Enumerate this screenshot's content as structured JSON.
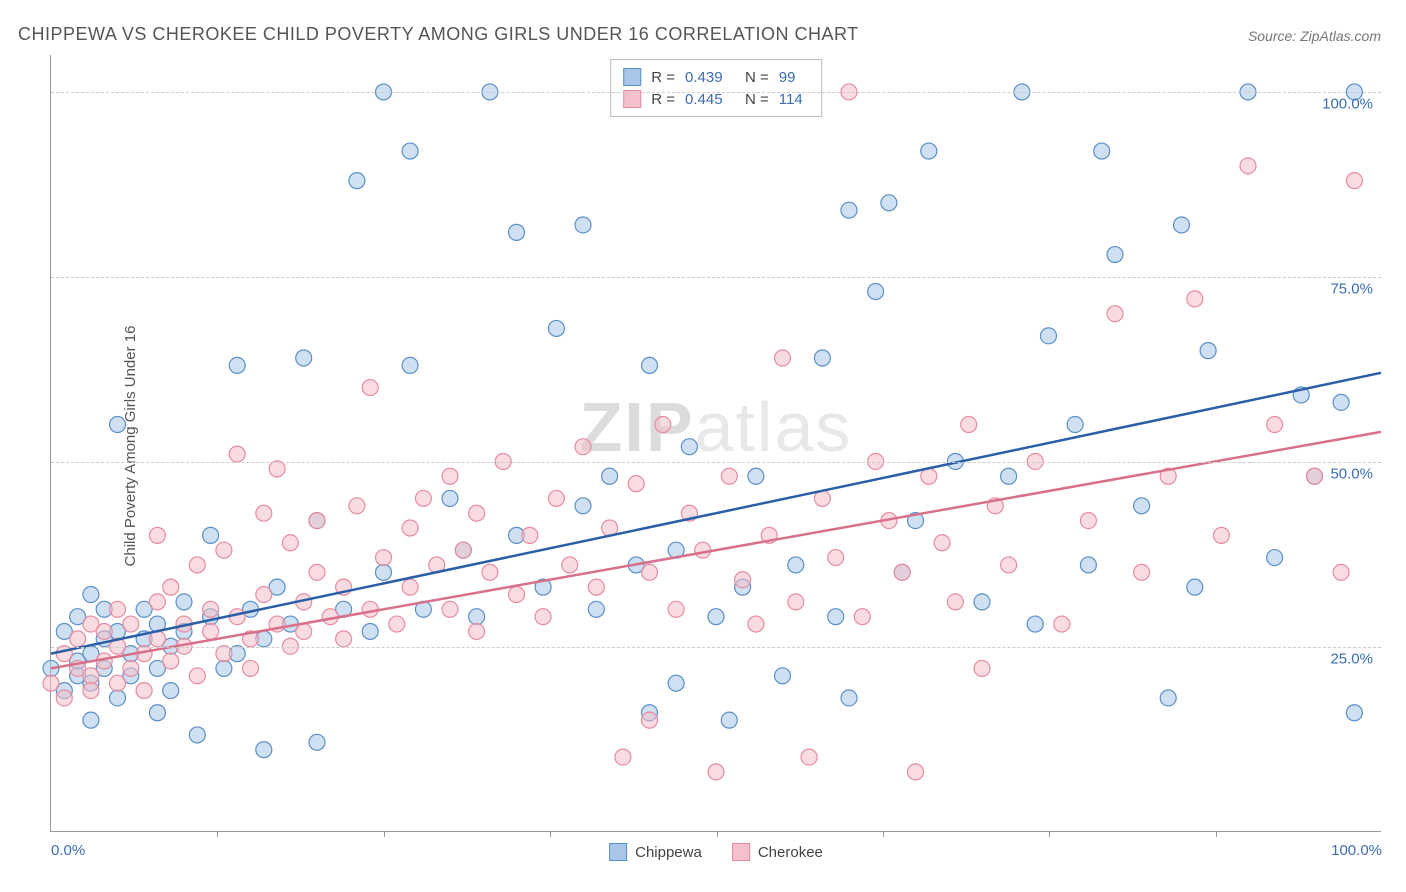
{
  "title": "CHIPPEWA VS CHEROKEE CHILD POVERTY AMONG GIRLS UNDER 16 CORRELATION CHART",
  "source_label": "Source:",
  "source_value": "ZipAtlas.com",
  "ylabel": "Child Poverty Among Girls Under 16",
  "watermark_a": "ZIP",
  "watermark_b": "atlas",
  "chart": {
    "type": "scatter",
    "xlim": [
      0,
      100
    ],
    "ylim": [
      0,
      105
    ],
    "xtick_labels": [
      "0.0%",
      "100.0%"
    ],
    "xtick_positions": [
      0,
      100
    ],
    "xtick_marks": [
      12.5,
      25,
      37.5,
      50,
      62.5,
      75,
      87.5
    ],
    "ytick_labels": [
      "25.0%",
      "50.0%",
      "75.0%",
      "100.0%"
    ],
    "ytick_positions": [
      25,
      50,
      75,
      100
    ],
    "grid_color": "#cccccc",
    "background_color": "#ffffff",
    "marker_radius": 8,
    "marker_opacity": 0.55,
    "series": [
      {
        "name": "Chippewa",
        "fill_color": "#a8c6e8",
        "stroke_color": "#5a8fc8",
        "line_color": "#2a5fa8",
        "R": "0.439",
        "N": "99",
        "trend": {
          "x1": 0,
          "y1": 24,
          "x2": 100,
          "y2": 62
        },
        "points": [
          [
            0,
            22
          ],
          [
            1,
            19
          ],
          [
            1,
            27
          ],
          [
            2,
            23
          ],
          [
            2,
            29
          ],
          [
            2,
            21
          ],
          [
            3,
            20
          ],
          [
            3,
            24
          ],
          [
            3,
            32
          ],
          [
            3,
            15
          ],
          [
            4,
            26
          ],
          [
            4,
            22
          ],
          [
            4,
            30
          ],
          [
            5,
            18
          ],
          [
            5,
            27
          ],
          [
            5,
            55
          ],
          [
            6,
            21
          ],
          [
            6,
            24
          ],
          [
            7,
            26
          ],
          [
            7,
            30
          ],
          [
            8,
            22
          ],
          [
            8,
            28
          ],
          [
            8,
            16
          ],
          [
            9,
            25
          ],
          [
            9,
            19
          ],
          [
            10,
            27
          ],
          [
            10,
            31
          ],
          [
            11,
            13
          ],
          [
            12,
            29
          ],
          [
            12,
            40
          ],
          [
            13,
            22
          ],
          [
            14,
            24
          ],
          [
            14,
            63
          ],
          [
            15,
            30
          ],
          [
            16,
            26
          ],
          [
            16,
            11
          ],
          [
            17,
            33
          ],
          [
            18,
            28
          ],
          [
            19,
            64
          ],
          [
            20,
            42
          ],
          [
            20,
            12
          ],
          [
            22,
            30
          ],
          [
            23,
            88
          ],
          [
            24,
            27
          ],
          [
            25,
            100
          ],
          [
            25,
            35
          ],
          [
            27,
            92
          ],
          [
            27,
            63
          ],
          [
            28,
            30
          ],
          [
            30,
            45
          ],
          [
            31,
            38
          ],
          [
            32,
            29
          ],
          [
            33,
            100
          ],
          [
            35,
            40
          ],
          [
            35,
            81
          ],
          [
            37,
            33
          ],
          [
            38,
            68
          ],
          [
            40,
            44
          ],
          [
            40,
            82
          ],
          [
            41,
            30
          ],
          [
            42,
            48
          ],
          [
            44,
            36
          ],
          [
            45,
            16
          ],
          [
            45,
            63
          ],
          [
            47,
            38
          ],
          [
            47,
            20
          ],
          [
            48,
            52
          ],
          [
            50,
            29
          ],
          [
            51,
            15
          ],
          [
            52,
            33
          ],
          [
            53,
            48
          ],
          [
            55,
            21
          ],
          [
            56,
            36
          ],
          [
            58,
            64
          ],
          [
            59,
            29
          ],
          [
            60,
            18
          ],
          [
            60,
            84
          ],
          [
            62,
            73
          ],
          [
            63,
            85
          ],
          [
            64,
            35
          ],
          [
            65,
            42
          ],
          [
            66,
            92
          ],
          [
            68,
            50
          ],
          [
            70,
            31
          ],
          [
            72,
            48
          ],
          [
            73,
            100
          ],
          [
            74,
            28
          ],
          [
            75,
            67
          ],
          [
            77,
            55
          ],
          [
            78,
            36
          ],
          [
            79,
            92
          ],
          [
            80,
            78
          ],
          [
            82,
            44
          ],
          [
            84,
            18
          ],
          [
            85,
            82
          ],
          [
            86,
            33
          ],
          [
            87,
            65
          ],
          [
            90,
            100
          ],
          [
            92,
            37
          ],
          [
            94,
            59
          ],
          [
            95,
            48
          ],
          [
            97,
            58
          ],
          [
            98,
            100
          ],
          [
            98,
            16
          ]
        ]
      },
      {
        "name": "Cherokee",
        "fill_color": "#f4c0cb",
        "stroke_color": "#e88ba0",
        "line_color": "#d9708a",
        "R": "0.445",
        "N": "114",
        "trend": {
          "x1": 0,
          "y1": 22,
          "x2": 100,
          "y2": 54
        },
        "points": [
          [
            0,
            20
          ],
          [
            1,
            24
          ],
          [
            1,
            18
          ],
          [
            2,
            22
          ],
          [
            2,
            26
          ],
          [
            3,
            21
          ],
          [
            3,
            28
          ],
          [
            3,
            19
          ],
          [
            4,
            23
          ],
          [
            4,
            27
          ],
          [
            5,
            25
          ],
          [
            5,
            20
          ],
          [
            5,
            30
          ],
          [
            6,
            22
          ],
          [
            6,
            28
          ],
          [
            7,
            24
          ],
          [
            7,
            19
          ],
          [
            8,
            26
          ],
          [
            8,
            31
          ],
          [
            8,
            40
          ],
          [
            9,
            23
          ],
          [
            9,
            33
          ],
          [
            10,
            25
          ],
          [
            10,
            28
          ],
          [
            11,
            21
          ],
          [
            11,
            36
          ],
          [
            12,
            27
          ],
          [
            12,
            30
          ],
          [
            13,
            24
          ],
          [
            13,
            38
          ],
          [
            14,
            51
          ],
          [
            14,
            29
          ],
          [
            15,
            26
          ],
          [
            15,
            22
          ],
          [
            16,
            32
          ],
          [
            16,
            43
          ],
          [
            17,
            28
          ],
          [
            17,
            49
          ],
          [
            18,
            25
          ],
          [
            18,
            39
          ],
          [
            19,
            31
          ],
          [
            19,
            27
          ],
          [
            20,
            42
          ],
          [
            20,
            35
          ],
          [
            21,
            29
          ],
          [
            22,
            33
          ],
          [
            22,
            26
          ],
          [
            23,
            44
          ],
          [
            24,
            30
          ],
          [
            24,
            60
          ],
          [
            25,
            37
          ],
          [
            26,
            28
          ],
          [
            27,
            41
          ],
          [
            27,
            33
          ],
          [
            28,
            45
          ],
          [
            29,
            36
          ],
          [
            30,
            30
          ],
          [
            30,
            48
          ],
          [
            31,
            38
          ],
          [
            32,
            27
          ],
          [
            32,
            43
          ],
          [
            33,
            35
          ],
          [
            34,
            50
          ],
          [
            35,
            32
          ],
          [
            36,
            40
          ],
          [
            37,
            29
          ],
          [
            38,
            45
          ],
          [
            39,
            36
          ],
          [
            40,
            52
          ],
          [
            41,
            33
          ],
          [
            42,
            41
          ],
          [
            43,
            10
          ],
          [
            44,
            47
          ],
          [
            45,
            35
          ],
          [
            45,
            15
          ],
          [
            46,
            55
          ],
          [
            47,
            30
          ],
          [
            48,
            43
          ],
          [
            49,
            38
          ],
          [
            50,
            8
          ],
          [
            51,
            48
          ],
          [
            52,
            34
          ],
          [
            53,
            28
          ],
          [
            54,
            40
          ],
          [
            55,
            64
          ],
          [
            56,
            31
          ],
          [
            57,
            10
          ],
          [
            58,
            45
          ],
          [
            59,
            37
          ],
          [
            60,
            100
          ],
          [
            61,
            29
          ],
          [
            62,
            50
          ],
          [
            63,
            42
          ],
          [
            64,
            35
          ],
          [
            65,
            8
          ],
          [
            66,
            48
          ],
          [
            67,
            39
          ],
          [
            68,
            31
          ],
          [
            69,
            55
          ],
          [
            70,
            22
          ],
          [
            71,
            44
          ],
          [
            72,
            36
          ],
          [
            74,
            50
          ],
          [
            76,
            28
          ],
          [
            78,
            42
          ],
          [
            80,
            70
          ],
          [
            82,
            35
          ],
          [
            84,
            48
          ],
          [
            86,
            72
          ],
          [
            88,
            40
          ],
          [
            90,
            90
          ],
          [
            92,
            55
          ],
          [
            95,
            48
          ],
          [
            97,
            35
          ],
          [
            98,
            88
          ]
        ]
      }
    ]
  },
  "legend_stats": {
    "r_label": "R =",
    "n_label": "N ="
  },
  "bottom_legend": {
    "items": [
      "Chippewa",
      "Cherokee"
    ]
  }
}
